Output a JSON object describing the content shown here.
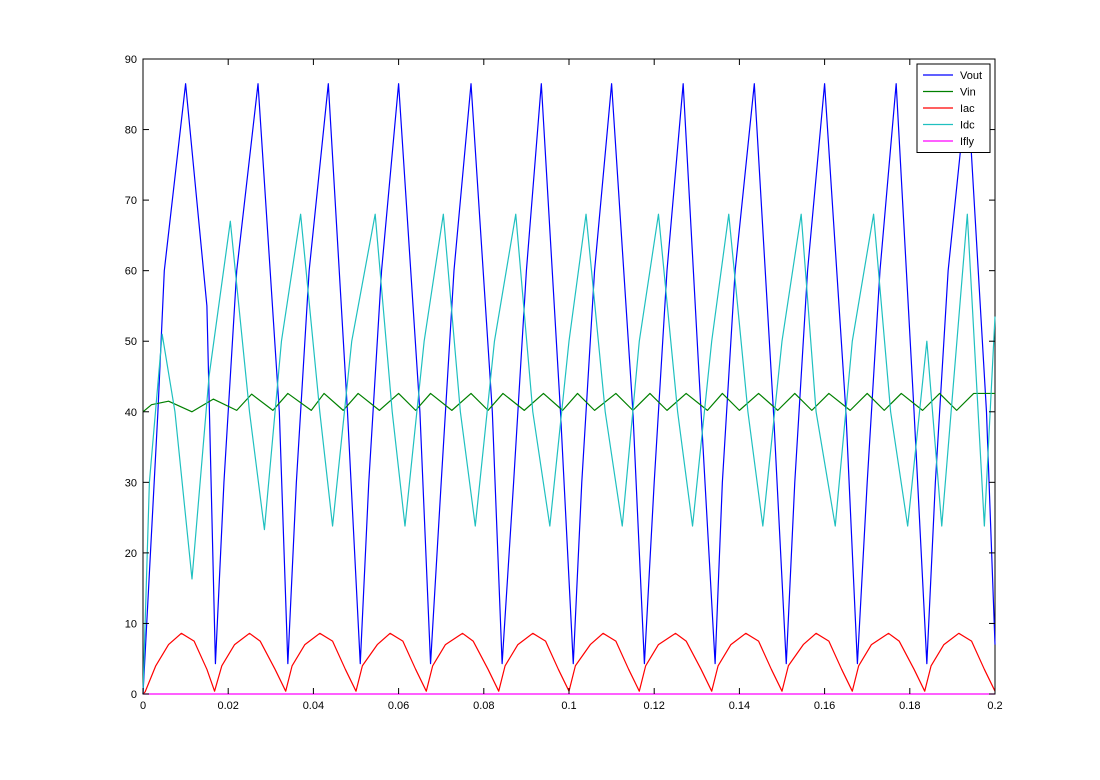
{
  "chart_data": {
    "type": "line",
    "title": "",
    "xlabel": "",
    "ylabel": "",
    "xlim": [
      0,
      0.2
    ],
    "ylim": [
      0,
      90
    ],
    "xticks": [
      0,
      0.02,
      0.04,
      0.06,
      0.08,
      0.1,
      0.12,
      0.14,
      0.16,
      0.18,
      0.2
    ],
    "xtick_labels": [
      "0",
      "0.02",
      "0.04",
      "0.06",
      "0.08",
      "0.1",
      "0.12",
      "0.14",
      "0.16",
      "0.18",
      "0.2"
    ],
    "yticks": [
      0,
      10,
      20,
      30,
      40,
      50,
      60,
      70,
      80,
      90
    ],
    "ytick_labels": [
      "0",
      "10",
      "20",
      "30",
      "40",
      "50",
      "60",
      "70",
      "80",
      "90"
    ],
    "grid": false,
    "legend_position": "top-right",
    "series": [
      {
        "name": "Vout",
        "color": "#0000ff",
        "x": [
          0,
          0.0035,
          0.005,
          0.01,
          0.015,
          0.017,
          0.019,
          0.022,
          0.027,
          0.032,
          0.034,
          0.036,
          0.039,
          0.0435,
          0.048,
          0.051,
          0.053,
          0.056,
          0.06,
          0.065,
          0.0675,
          0.07,
          0.073,
          0.077,
          0.082,
          0.0843,
          0.087,
          0.09,
          0.0935,
          0.098,
          0.101,
          0.103,
          0.106,
          0.11,
          0.115,
          0.1177,
          0.12,
          0.123,
          0.1268,
          0.131,
          0.1343,
          0.136,
          0.139,
          0.1435,
          0.148,
          0.151,
          0.153,
          0.156,
          0.16,
          0.165,
          0.1677,
          0.17,
          0.173,
          0.1768,
          0.181,
          0.184,
          0.186,
          0.189,
          0.1935,
          0.198,
          0.2
        ],
        "y": [
          0,
          40,
          60,
          86.5,
          55,
          4.3,
          30,
          60,
          86.5,
          40,
          4.3,
          30,
          60,
          86.5,
          40,
          4.3,
          30,
          60,
          86.5,
          40,
          4.3,
          30,
          60,
          86.5,
          40,
          4.3,
          30,
          60,
          86.5,
          40,
          4.3,
          30,
          60,
          86.5,
          40,
          4.3,
          30,
          60,
          86.5,
          40,
          4.3,
          30,
          60,
          86.5,
          40,
          4.3,
          30,
          60,
          86.5,
          40,
          4.3,
          30,
          60,
          86.5,
          40,
          4.3,
          30,
          60,
          86.5,
          40,
          7
        ]
      },
      {
        "name": "Vin",
        "color": "#008000",
        "x": [
          0,
          0.002,
          0.006,
          0.0115,
          0.0165,
          0.022,
          0.0255,
          0.0305,
          0.034,
          0.0395,
          0.0425,
          0.047,
          0.0505,
          0.0555,
          0.06,
          0.064,
          0.0675,
          0.0725,
          0.077,
          0.081,
          0.0845,
          0.0895,
          0.094,
          0.0985,
          0.102,
          0.106,
          0.111,
          0.115,
          0.119,
          0.123,
          0.1275,
          0.1325,
          0.136,
          0.14,
          0.1445,
          0.149,
          0.153,
          0.157,
          0.161,
          0.166,
          0.17,
          0.174,
          0.178,
          0.183,
          0.187,
          0.191,
          0.195,
          0.2
        ],
        "y": [
          40,
          41,
          41.5,
          40,
          41.8,
          40.2,
          42.5,
          40.2,
          42.6,
          40.2,
          42.6,
          40.2,
          42.6,
          40.2,
          42.6,
          40.2,
          42.6,
          40.2,
          42.6,
          40.2,
          42.6,
          40.2,
          42.6,
          40.2,
          42.6,
          40.2,
          42.6,
          40.2,
          42.6,
          40.2,
          42.6,
          40.2,
          42.6,
          40.2,
          42.6,
          40.2,
          42.6,
          40.2,
          42.6,
          40.2,
          42.6,
          40.2,
          42.6,
          40.2,
          42.6,
          40.2,
          42.6,
          42.6
        ]
      },
      {
        "name": "Iac",
        "color": "#ff0000",
        "x": [
          0,
          0.0005,
          0.003,
          0.006,
          0.009,
          0.012,
          0.015,
          0.0168,
          0.0185,
          0.0215,
          0.025,
          0.0275,
          0.031,
          0.0335,
          0.035,
          0.038,
          0.0415,
          0.0445,
          0.0475,
          0.05,
          0.0515,
          0.055,
          0.058,
          0.061,
          0.064,
          0.0665,
          0.068,
          0.071,
          0.075,
          0.0775,
          0.081,
          0.0835,
          0.085,
          0.088,
          0.0915,
          0.0945,
          0.0975,
          0.1,
          0.1015,
          0.105,
          0.108,
          0.111,
          0.114,
          0.1165,
          0.118,
          0.121,
          0.125,
          0.1275,
          0.131,
          0.1335,
          0.135,
          0.138,
          0.1415,
          0.1445,
          0.1475,
          0.15,
          0.1515,
          0.155,
          0.158,
          0.161,
          0.164,
          0.1665,
          0.168,
          0.171,
          0.175,
          0.1775,
          0.181,
          0.1835,
          0.185,
          0.188,
          0.1915,
          0.1945,
          0.1975,
          0.2
        ],
        "y": [
          0,
          0.3,
          4,
          7,
          8.6,
          7.5,
          3.5,
          0.4,
          4,
          7,
          8.6,
          7.5,
          3.5,
          0.4,
          4,
          7,
          8.6,
          7.5,
          3.5,
          0.4,
          4,
          7,
          8.6,
          7.5,
          3.5,
          0.4,
          4,
          7,
          8.6,
          7.5,
          3.5,
          0.4,
          4,
          7,
          8.6,
          7.5,
          3.5,
          0.4,
          4,
          7,
          8.6,
          7.5,
          3.5,
          0.4,
          4,
          7,
          8.6,
          7.5,
          3.5,
          0.4,
          4,
          7,
          8.6,
          7.5,
          3.5,
          0.4,
          4,
          7,
          8.6,
          7.5,
          3.5,
          0.4,
          4,
          7,
          8.6,
          7.5,
          3.5,
          0.4,
          4,
          7,
          8.6,
          7.5,
          3.5,
          0.4
        ]
      },
      {
        "name": "Idc",
        "color": "#20c0c0",
        "x": [
          0,
          0.0015,
          0.0045,
          0.0075,
          0.0115,
          0.0155,
          0.0205,
          0.025,
          0.0285,
          0.0325,
          0.037,
          0.0415,
          0.0445,
          0.049,
          0.0545,
          0.0585,
          0.0615,
          0.066,
          0.0705,
          0.0745,
          0.078,
          0.0825,
          0.0875,
          0.0915,
          0.0955,
          0.1,
          0.104,
          0.1085,
          0.1125,
          0.1165,
          0.121,
          0.1255,
          0.129,
          0.1335,
          0.1375,
          0.142,
          0.1455,
          0.15,
          0.1545,
          0.158,
          0.1625,
          0.1665,
          0.1715,
          0.1755,
          0.1795,
          0.184,
          0.1875,
          0.1935,
          0.1975,
          0.2
        ],
        "y": [
          0,
          30,
          51,
          40,
          16.3,
          45,
          67,
          40,
          23.3,
          50,
          68,
          40,
          23.8,
          50,
          68,
          40,
          23.8,
          50,
          68,
          40,
          23.8,
          50,
          68,
          40,
          23.8,
          50,
          68,
          40,
          23.8,
          50,
          68,
          40,
          23.8,
          50,
          68,
          40,
          23.8,
          50,
          68,
          40,
          23.8,
          50,
          68,
          40,
          23.8,
          50,
          23.8,
          68,
          23.8,
          53.5
        ]
      },
      {
        "name": "Ifly",
        "color": "#ff00ff",
        "x": [
          0,
          0.2
        ],
        "y": [
          0,
          0
        ]
      }
    ]
  }
}
